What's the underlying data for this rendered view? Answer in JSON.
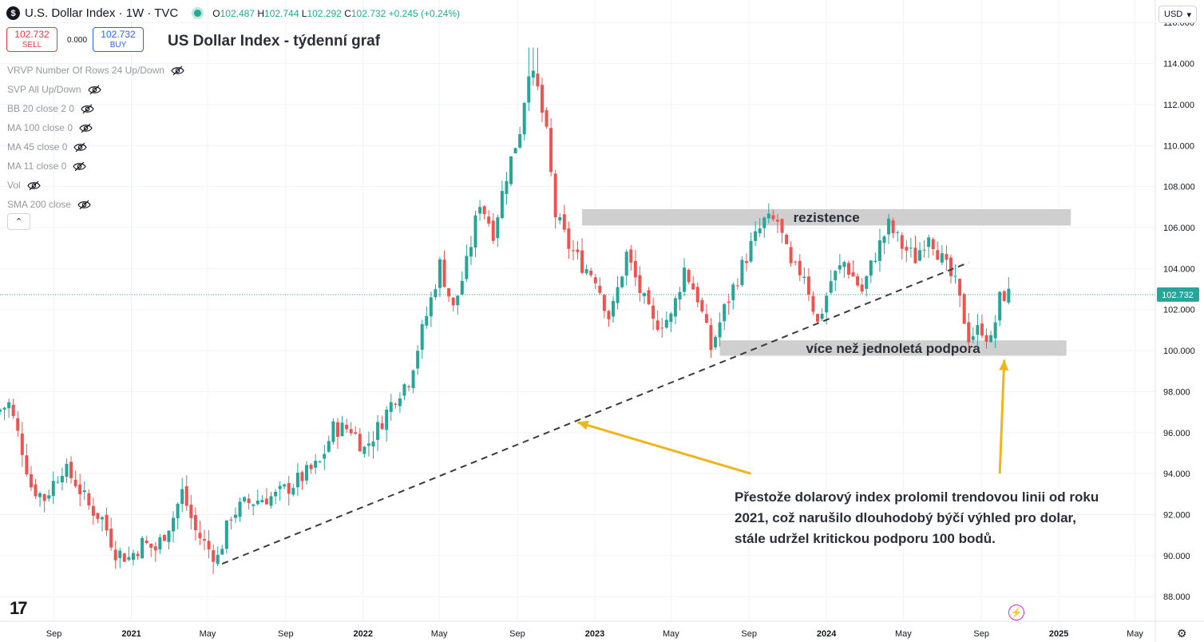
{
  "header": {
    "symbol_badge": "$",
    "symbol": "U.S. Dollar Index · 1W · TVC",
    "ohlc": {
      "o_label": "O",
      "o": "102.487",
      "h_label": "H",
      "h": "102.744",
      "l_label": "L",
      "l": "102.292",
      "c_label": "C",
      "c": "102.732",
      "change": "+0.245 (+0.24%)"
    }
  },
  "trade": {
    "sell_price": "102.732",
    "sell_label": "SELL",
    "spread": "0.000",
    "buy_price": "102.732",
    "buy_label": "BUY"
  },
  "title": "US Dollar Index - týdenní graf",
  "indicators": [
    {
      "label": "VRVP Number Of Rows 24 Up/Down",
      "icon": "eye-off-icon"
    },
    {
      "label": "SVP All Up/Down",
      "icon": "eye-off-icon"
    },
    {
      "label": "BB 20 close 2 0",
      "icon": "eye-off-icon"
    },
    {
      "label": "MA 100 close 0",
      "icon": "eye-off-icon"
    },
    {
      "label": "MA 45 close 0",
      "icon": "eye-off-icon"
    },
    {
      "label": "MA 11 close 0",
      "icon": "eye-off-icon"
    },
    {
      "label": "Vol",
      "icon": "eye-off-icon"
    },
    {
      "label": "SMA 200 close",
      "icon": "eye-off-icon"
    }
  ],
  "collapse_glyph": "⌃",
  "currency": {
    "label": "USD",
    "glyph": "▾"
  },
  "colors": {
    "up": "#26a69a",
    "down": "#ef5350",
    "arrow": "#f0b41c",
    "zone": "#cfcfcf",
    "trend": "#3a3a3a"
  },
  "chart_data": {
    "type": "candlestick",
    "timeframe": "1W",
    "ylim": [
      86.8,
      117.1
    ],
    "y_ticks": [
      88.0,
      90.0,
      92.0,
      94.0,
      96.0,
      98.0,
      100.0,
      102.0,
      104.0,
      106.0,
      108.0,
      110.0,
      112.0,
      114.0,
      116.0
    ],
    "y_tick_labels": [
      "88.000",
      "90.000",
      "92.000",
      "94.000",
      "96.000",
      "98.000",
      "100.000",
      "102.000",
      "104.000",
      "106.000",
      "108.000",
      "110.000",
      "112.000",
      "114.000",
      "116.000"
    ],
    "x_range": [
      "2020-06-08",
      "2025-06-02"
    ],
    "x_ticks": [
      {
        "date": "2020-09-01",
        "label": "Sep",
        "bold": false
      },
      {
        "date": "2021-01-01",
        "label": "2021",
        "bold": true
      },
      {
        "date": "2021-05-01",
        "label": "May",
        "bold": false
      },
      {
        "date": "2021-09-01",
        "label": "Sep",
        "bold": false
      },
      {
        "date": "2022-01-01",
        "label": "2022",
        "bold": true
      },
      {
        "date": "2022-05-01",
        "label": "May",
        "bold": false
      },
      {
        "date": "2022-09-01",
        "label": "Sep",
        "bold": false
      },
      {
        "date": "2023-01-01",
        "label": "2023",
        "bold": true
      },
      {
        "date": "2023-05-01",
        "label": "May",
        "bold": false
      },
      {
        "date": "2023-09-01",
        "label": "Sep",
        "bold": false
      },
      {
        "date": "2024-01-01",
        "label": "2024",
        "bold": true
      },
      {
        "date": "2024-05-01",
        "label": "May",
        "bold": false
      },
      {
        "date": "2024-09-01",
        "label": "Sep",
        "bold": false
      },
      {
        "date": "2025-01-01",
        "label": "2025",
        "bold": true
      },
      {
        "date": "2025-05-01",
        "label": "May",
        "bold": false
      }
    ],
    "price_path": [
      [
        "2020-06-08",
        97.0
      ],
      [
        "2020-06-29",
        97.4
      ],
      [
        "2020-07-20",
        95.2
      ],
      [
        "2020-08-03",
        93.4
      ],
      [
        "2020-08-24",
        92.8
      ],
      [
        "2020-09-21",
        94.3
      ],
      [
        "2020-10-12",
        93.6
      ],
      [
        "2020-11-02",
        92.4
      ],
      [
        "2020-11-23",
        91.8
      ],
      [
        "2020-12-14",
        90.2
      ],
      [
        "2021-01-04",
        89.9
      ],
      [
        "2021-01-25",
        90.6
      ],
      [
        "2021-02-15",
        90.3
      ],
      [
        "2021-03-15",
        91.9
      ],
      [
        "2021-03-29",
        93.1
      ],
      [
        "2021-04-19",
        91.2
      ],
      [
        "2021-05-10",
        90.3
      ],
      [
        "2021-05-24",
        89.9
      ],
      [
        "2021-06-14",
        92.0
      ],
      [
        "2021-07-05",
        92.5
      ],
      [
        "2021-08-02",
        92.8
      ],
      [
        "2021-08-23",
        92.9
      ],
      [
        "2021-09-20",
        93.5
      ],
      [
        "2021-10-11",
        94.0
      ],
      [
        "2021-11-01",
        94.5
      ],
      [
        "2021-11-22",
        96.2
      ],
      [
        "2021-12-20",
        96.2
      ],
      [
        "2022-01-10",
        95.2
      ],
      [
        "2022-01-31",
        96.2
      ],
      [
        "2022-02-28",
        97.8
      ],
      [
        "2022-03-21",
        98.6
      ],
      [
        "2022-04-25",
        102.5
      ],
      [
        "2022-05-09",
        104.2
      ],
      [
        "2022-05-30",
        102.0
      ],
      [
        "2022-06-20",
        104.2
      ],
      [
        "2022-07-11",
        107.3
      ],
      [
        "2022-08-01",
        105.8
      ],
      [
        "2022-08-22",
        108.6
      ],
      [
        "2022-09-12",
        110.8
      ],
      [
        "2022-09-26",
        113.8
      ],
      [
        "2022-10-10",
        112.7
      ],
      [
        "2022-10-24",
        110.5
      ],
      [
        "2022-11-07",
        106.6
      ],
      [
        "2022-11-28",
        105.1
      ],
      [
        "2022-12-19",
        104.2
      ],
      [
        "2023-01-09",
        103.6
      ],
      [
        "2023-02-01",
        101.5
      ],
      [
        "2023-02-27",
        104.7
      ],
      [
        "2023-03-20",
        102.9
      ],
      [
        "2023-04-10",
        101.3
      ],
      [
        "2023-05-08",
        101.6
      ],
      [
        "2023-05-29",
        104.0
      ],
      [
        "2023-06-19",
        102.6
      ],
      [
        "2023-07-10",
        100.1
      ],
      [
        "2023-07-31",
        102.0
      ],
      [
        "2023-08-21",
        103.6
      ],
      [
        "2023-09-11",
        105.1
      ],
      [
        "2023-10-02",
        106.3
      ],
      [
        "2023-10-23",
        106.3
      ],
      [
        "2023-11-13",
        104.0
      ],
      [
        "2023-12-04",
        103.8
      ],
      [
        "2023-12-25",
        101.3
      ],
      [
        "2024-01-15",
        103.4
      ],
      [
        "2024-02-05",
        104.3
      ],
      [
        "2024-03-04",
        102.9
      ],
      [
        "2024-03-25",
        104.7
      ],
      [
        "2024-04-15",
        106.1
      ],
      [
        "2024-05-06",
        105.1
      ],
      [
        "2024-05-27",
        104.5
      ],
      [
        "2024-06-17",
        105.8
      ],
      [
        "2024-07-08",
        104.4
      ],
      [
        "2024-07-29",
        103.2
      ],
      [
        "2024-08-19",
        100.7
      ],
      [
        "2024-09-09",
        101.1
      ],
      [
        "2024-09-23",
        100.4
      ],
      [
        "2024-10-07",
        102.5
      ],
      [
        "2024-10-14",
        102.73
      ]
    ],
    "peak": {
      "date": "2022-09-26",
      "high": 114.78
    },
    "resistance_zone": {
      "label": "rezistence",
      "from": "2022-12-12",
      "to": "2025-01-20",
      "y_low": 106.1,
      "y_high": 106.9
    },
    "support_zone": {
      "label": "více než jednoletá podpora",
      "from": "2023-07-17",
      "to": "2025-01-13",
      "y_low": 99.75,
      "y_high": 100.5
    },
    "trendline": {
      "from": [
        "2021-05-24",
        89.6
      ],
      "to": [
        "2024-08-12",
        104.3
      ]
    },
    "arrows": [
      {
        "from": [
          "2023-09-04",
          94.0
        ],
        "to": [
          "2022-12-05",
          96.5
        ]
      },
      {
        "from": [
          "2024-09-30",
          94.0
        ],
        "to": [
          "2024-10-07",
          99.55
        ]
      }
    ],
    "last_price": {
      "value": 102.732,
      "label": "102.732"
    },
    "annotation": "Přestože dolarový index prolomil trendovou linii od roku 2021, což narušilo dlouhodobý býčí výhled pro dolar, stále udržel kritickou podporu 100 bodů."
  },
  "branding": {
    "logo_text": "17",
    "settings_glyph": "⚙",
    "bolt_glyph": "⚡"
  }
}
